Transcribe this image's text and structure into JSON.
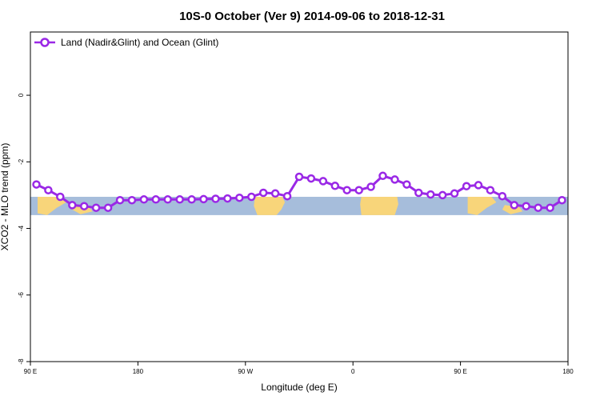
{
  "chart_data": {
    "type": "line",
    "title": "10S-0 October (Ver 9)   2014-09-06 to 2018-12-31",
    "xlabel": "Longitude (deg E)",
    "ylabel": "XCO2 - MLO trend (ppm)",
    "x_ticks": [
      {
        "value": 90,
        "label": "90 E"
      },
      {
        "value": 180,
        "label": "180"
      },
      {
        "value": 270,
        "label": "90 W"
      },
      {
        "value": 360,
        "label": "0"
      },
      {
        "value": 450,
        "label": "90 E"
      },
      {
        "value": 540,
        "label": "180"
      }
    ],
    "y_ticks": [
      {
        "value": 0,
        "label": "0"
      },
      {
        "value": -2,
        "label": "-2"
      },
      {
        "value": -4,
        "label": "-4"
      },
      {
        "value": -6,
        "label": "-6"
      },
      {
        "value": -8,
        "label": "-8"
      }
    ],
    "xlim": [
      90,
      540
    ],
    "ylim": [
      -8,
      1.9
    ],
    "grid": false,
    "legend_position": "top-left",
    "map_band_ylim": [
      -3.6,
      -3.05
    ],
    "colors": {
      "series": "#9a28e6",
      "ocean": "#a6bddb",
      "land": "#f8d57a"
    },
    "series": [
      {
        "name": "Land (Nadir&Glint) and Ocean (Glint)",
        "x": [
          95,
          105,
          115,
          125,
          135,
          145,
          155,
          165,
          175,
          185,
          195,
          205,
          215,
          225,
          235,
          245,
          255,
          265,
          275,
          285,
          295,
          305,
          315,
          325,
          335,
          345,
          355,
          365,
          375,
          385,
          395,
          405,
          415,
          425,
          435,
          445,
          455,
          465,
          475,
          485,
          495,
          505,
          515,
          525,
          535
        ],
        "y": [
          -2.68,
          -2.85,
          -3.05,
          -3.3,
          -3.33,
          -3.38,
          -3.38,
          -3.15,
          -3.15,
          -3.13,
          -3.13,
          -3.13,
          -3.13,
          -3.13,
          -3.12,
          -3.11,
          -3.1,
          -3.08,
          -3.05,
          -2.93,
          -2.95,
          -3.03,
          -2.45,
          -2.5,
          -2.58,
          -2.72,
          -2.85,
          -2.85,
          -2.75,
          -2.42,
          -2.53,
          -2.68,
          -2.93,
          -2.98,
          -3.0,
          -2.95,
          -2.73,
          -2.7,
          -2.85,
          -3.03,
          -3.3,
          -3.33,
          -3.38,
          -3.38,
          -3.15
        ]
      }
    ]
  }
}
